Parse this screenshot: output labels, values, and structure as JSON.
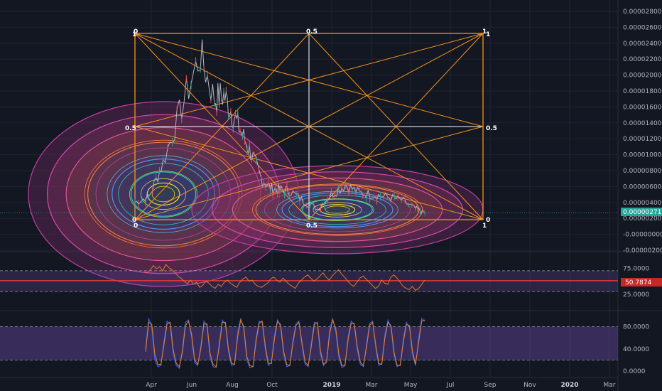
{
  "colors": {
    "background": "#131722",
    "grid": "#1f2433",
    "fib_box": "#f7931a",
    "fib_mid": "#ffffff",
    "price_line": "#b2b5be",
    "rsi_line": "#e07b2b",
    "rsi_band": "#7e57c2",
    "rsi_level": "#e53935",
    "stoch_k": "#2962ff",
    "stoch_d": "#e07b2b",
    "stoch_band": "#7e57c2",
    "price_tag": "#26a69a",
    "rsi_tag": "#c62828"
  },
  "chart_data": [
    {
      "type": "line",
      "panel": "price",
      "y_ticks": [
        "0.00002800",
        "0.00002600",
        "0.00002400",
        "0.00002200",
        "0.00002000",
        "0.00001800",
        "0.00001600",
        "0.00001400",
        "0.00001200",
        "0.00001000",
        "0.00000800",
        "0.00000600",
        "0.00000400",
        "0.00000200",
        "-0.00000000",
        "-0.00000200"
      ],
      "ylim": [
        -2e-06,
        2.8e-05
      ],
      "current_value_label": "0.00000271",
      "current_value": 2.71e-06,
      "series": [
        {
          "x": [
            0.08,
            0.11,
            0.14,
            0.18,
            0.22,
            0.25,
            0.27,
            0.29,
            0.31,
            0.33,
            0.35,
            0.37,
            0.39,
            0.41,
            0.44,
            0.47,
            0.5,
            0.53,
            0.56,
            0.59,
            0.62,
            0.65,
            0.68,
            0.7
          ],
          "values": [
            4e-06,
            4.7e-06,
            9e-06,
            1.6e-05,
            2.25e-05,
            1.7e-05,
            1.75e-05,
            1.5e-05,
            1.25e-05,
            1e-05,
            7e-06,
            5.8e-06,
            5.6e-06,
            5.5e-06,
            4.2e-06,
            3.2e-06,
            5e-06,
            6.2e-06,
            5.2e-06,
            5e-06,
            4.7e-06,
            4.3e-06,
            3.2e-06,
            2.7e-06
          ]
        }
      ],
      "fib_labels": {
        "left_top": "0",
        "mid_top": "0.5",
        "right_top": "1",
        "top_left": "1",
        "top_right": "1",
        "middle_left": "0.5",
        "middle_right": "0.5",
        "bottom_left": "0",
        "bottom_right": "0",
        "left_bottom": "0",
        "mid_bottom": "0.5",
        "right_bottom": "1"
      }
    },
    {
      "type": "line",
      "panel": "rsi",
      "y_ticks": [
        "75.0000",
        "25.0000"
      ],
      "level_label": "50.7874",
      "ylim": [
        0,
        100
      ],
      "upper_band": 70,
      "lower_band": 30,
      "values": [
        68,
        66,
        72,
        80,
        74,
        78,
        70,
        82,
        76,
        72,
        66,
        60,
        55,
        50,
        45,
        52,
        44,
        48,
        38,
        42,
        50,
        46,
        40,
        36,
        44,
        40,
        48,
        52,
        46,
        42,
        38,
        48,
        54,
        58,
        50,
        52,
        44,
        40,
        38,
        42,
        46,
        54,
        58,
        52,
        48,
        56,
        50,
        44,
        40,
        36,
        46,
        52,
        58,
        62,
        56,
        50,
        54,
        60,
        66,
        58,
        52,
        60,
        66,
        72,
        64,
        58,
        50,
        44,
        40,
        48,
        56,
        60,
        54,
        48,
        42,
        36,
        40,
        52,
        46,
        44,
        58,
        62,
        56,
        48,
        40,
        36,
        34,
        40,
        32,
        36,
        44,
        52
      ]
    },
    {
      "type": "line",
      "panel": "stoch",
      "y_ticks": [
        "80.0000",
        "40.0000",
        "0.0000"
      ],
      "ylim": [
        0,
        100
      ],
      "upper_band": 80,
      "lower_band": 20,
      "k": [
        40,
        95,
        80,
        20,
        8,
        10,
        55,
        90,
        85,
        30,
        10,
        5,
        40,
        88,
        92,
        60,
        15,
        10,
        45,
        90,
        82,
        25,
        8,
        6,
        50,
        92,
        85,
        35,
        10,
        12,
        70,
        95,
        75,
        20,
        6,
        8,
        60,
        90,
        88,
        40,
        10,
        15,
        65,
        92,
        80,
        30,
        8,
        10,
        55,
        85,
        90,
        45,
        12,
        8,
        50,
        88,
        86,
        30,
        10,
        20,
        75,
        95,
        70,
        25,
        6,
        10,
        62,
        90,
        84,
        38,
        12,
        8,
        48,
        86,
        90,
        42,
        10,
        14,
        66,
        92,
        78,
        28,
        8,
        12,
        58,
        88,
        80,
        30,
        10,
        60,
        95,
        90
      ],
      "d": [
        35,
        88,
        85,
        30,
        12,
        12,
        48,
        85,
        88,
        38,
        14,
        8,
        34,
        82,
        90,
        66,
        20,
        12,
        40,
        85,
        85,
        32,
        12,
        8,
        44,
        88,
        88,
        40,
        14,
        12,
        62,
        92,
        80,
        26,
        10,
        8,
        54,
        86,
        90,
        46,
        14,
        14,
        58,
        90,
        84,
        36,
        12,
        10,
        50,
        82,
        88,
        50,
        16,
        10,
        44,
        84,
        88,
        36,
        12,
        16,
        68,
        92,
        76,
        30,
        10,
        10,
        56,
        86,
        86,
        44,
        16,
        10,
        42,
        82,
        88,
        48,
        14,
        12,
        60,
        88,
        82,
        34,
        10,
        10,
        52,
        84,
        82,
        36,
        12,
        52,
        90,
        92
      ]
    },
    {
      "type": "line",
      "panel": "time_axis",
      "x_ticks": [
        "Apr",
        "Jun",
        "Aug",
        "Oct",
        "2019",
        "Mar",
        "May",
        "Jul",
        "Sep",
        "Nov",
        "2020",
        "Mar"
      ]
    }
  ]
}
